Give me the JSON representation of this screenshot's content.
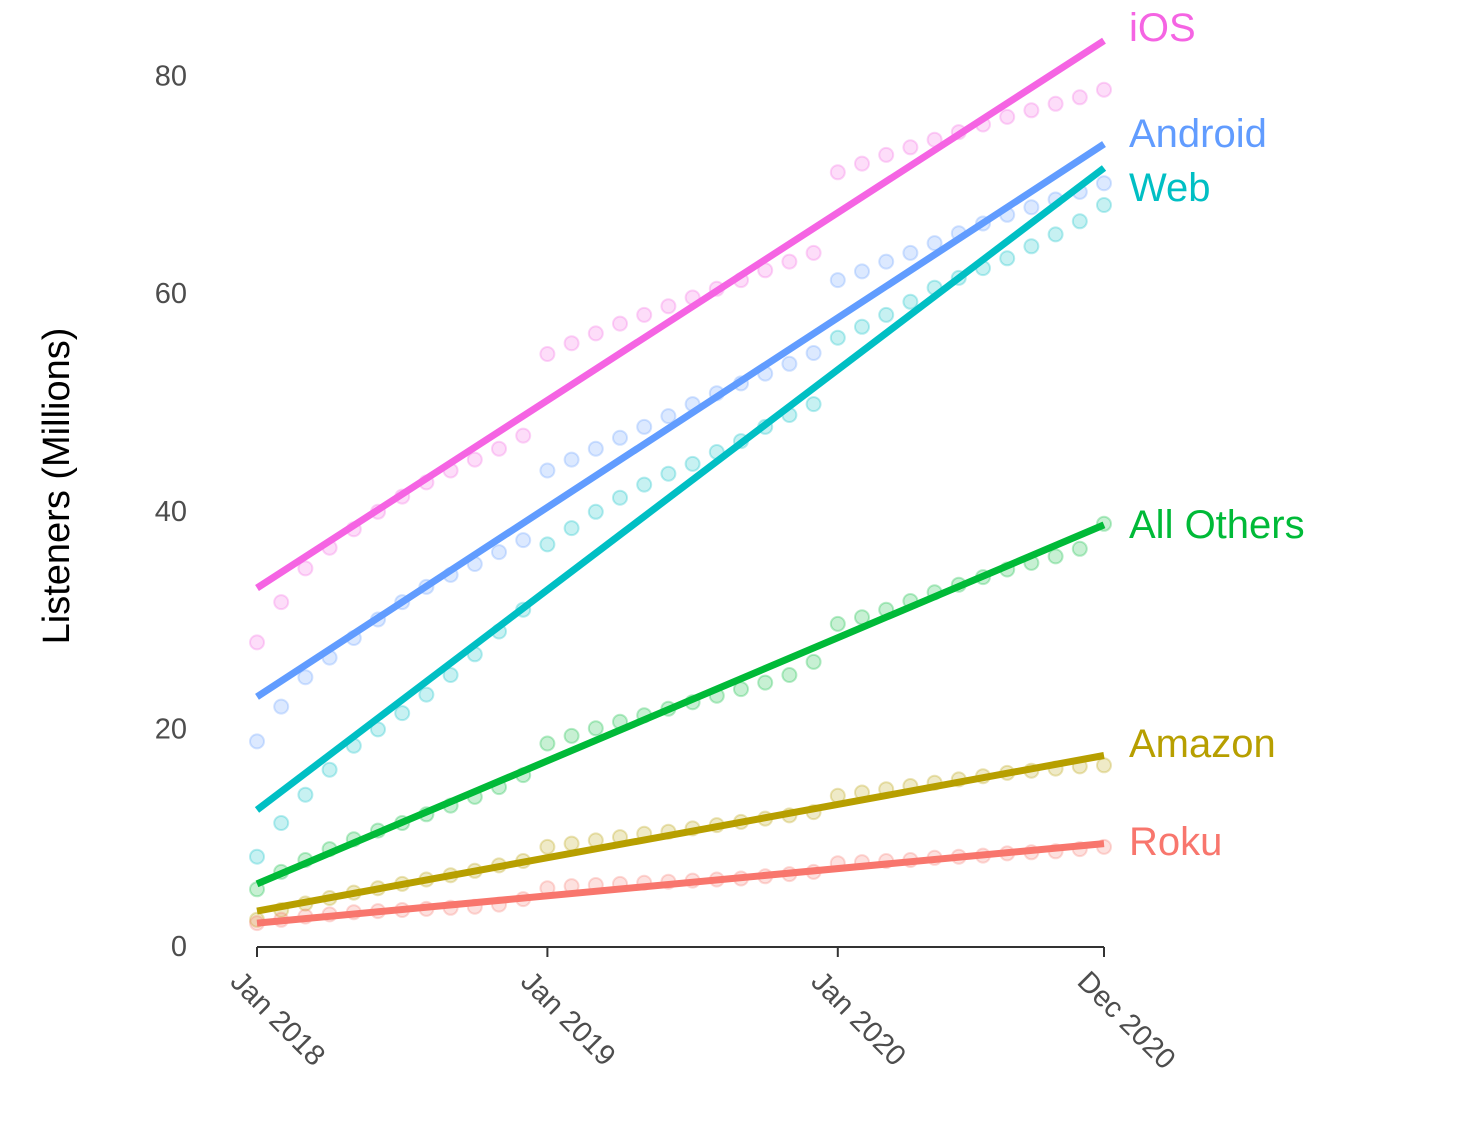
{
  "chart_data": {
    "type": "line",
    "ylabel": "Listeners (Millions)",
    "xlabel": "",
    "ylim": [
      0,
      85
    ],
    "yticks": [
      0,
      20,
      40,
      60,
      80
    ],
    "x_range": [
      "2018-01",
      "2020-12"
    ],
    "xticks": [
      {
        "date": "2018-01",
        "label": "Jan 2018"
      },
      {
        "date": "2019-01",
        "label": "Jan 2019"
      },
      {
        "date": "2020-01",
        "label": "Jan 2020"
      },
      {
        "date": "2020-12",
        "label": "Dec 2020"
      }
    ],
    "grid": false,
    "legend": "direct labels at right end of lines",
    "point_months": [
      "2018-01",
      "2018-02",
      "2018-03",
      "2018-04",
      "2018-05",
      "2018-06",
      "2018-07",
      "2018-08",
      "2018-09",
      "2018-10",
      "2018-11",
      "2018-12",
      "2019-01",
      "2019-02",
      "2019-03",
      "2019-04",
      "2019-05",
      "2019-06",
      "2019-07",
      "2019-08",
      "2019-09",
      "2019-10",
      "2019-11",
      "2019-12",
      "2020-01",
      "2020-02",
      "2020-03",
      "2020-04",
      "2020-05",
      "2020-06",
      "2020-07",
      "2020-08",
      "2020-09",
      "2020-10",
      "2020-11",
      "2020-12"
    ],
    "series": [
      {
        "name": "iOS",
        "color": "#f564e3",
        "trend": [
          33.0,
          83.3
        ],
        "points": [
          28.0,
          31.7,
          34.8,
          36.7,
          38.4,
          40.0,
          41.4,
          42.7,
          43.8,
          44.8,
          45.8,
          47.0,
          54.5,
          55.5,
          56.4,
          57.3,
          58.1,
          58.9,
          59.7,
          60.5,
          61.3,
          62.2,
          63.0,
          63.8,
          71.2,
          72.0,
          72.8,
          73.5,
          74.2,
          74.9,
          75.6,
          76.3,
          76.9,
          77.5,
          78.1,
          78.8
        ]
      },
      {
        "name": "Android",
        "color": "#619cff",
        "trend": [
          23.0,
          73.8
        ],
        "points": [
          18.9,
          22.1,
          24.8,
          26.6,
          28.4,
          30.1,
          31.7,
          33.1,
          34.2,
          35.2,
          36.3,
          37.4,
          43.8,
          44.8,
          45.8,
          46.8,
          47.8,
          48.8,
          49.9,
          50.9,
          51.8,
          52.7,
          53.6,
          54.6,
          61.3,
          62.1,
          63.0,
          63.8,
          64.7,
          65.6,
          66.5,
          67.3,
          68.0,
          68.7,
          69.4,
          70.2
        ]
      },
      {
        "name": "Web",
        "color": "#00bfc4",
        "trend": [
          12.6,
          71.6
        ],
        "points": [
          8.3,
          11.4,
          14.0,
          16.3,
          18.5,
          20.0,
          21.5,
          23.2,
          25.0,
          26.9,
          29.0,
          31.0,
          37.0,
          38.5,
          40.0,
          41.3,
          42.5,
          43.5,
          44.4,
          45.5,
          46.5,
          47.8,
          48.9,
          49.9,
          56.0,
          57.0,
          58.1,
          59.3,
          60.6,
          61.5,
          62.4,
          63.3,
          64.4,
          65.5,
          66.7,
          68.2
        ]
      },
      {
        "name": "All Others",
        "color": "#00ba38",
        "trend": [
          5.8,
          38.8
        ],
        "points": [
          5.3,
          6.9,
          8.0,
          9.0,
          9.9,
          10.7,
          11.4,
          12.2,
          13.0,
          13.8,
          14.7,
          15.8,
          18.7,
          19.4,
          20.1,
          20.7,
          21.3,
          21.9,
          22.5,
          23.1,
          23.7,
          24.3,
          25.0,
          26.2,
          29.7,
          30.3,
          31.0,
          31.8,
          32.6,
          33.3,
          34.0,
          34.7,
          35.3,
          35.9,
          36.6,
          38.9
        ]
      },
      {
        "name": "Amazon",
        "color": "#b79f00",
        "trend": [
          3.3,
          17.6
        ],
        "points": [
          2.5,
          3.4,
          4.0,
          4.5,
          5.0,
          5.4,
          5.8,
          6.2,
          6.6,
          7.0,
          7.5,
          7.9,
          9.2,
          9.5,
          9.8,
          10.1,
          10.4,
          10.6,
          10.9,
          11.2,
          11.5,
          11.8,
          12.1,
          12.4,
          13.9,
          14.2,
          14.5,
          14.8,
          15.1,
          15.4,
          15.7,
          16.0,
          16.2,
          16.4,
          16.6,
          16.7
        ]
      },
      {
        "name": "Roku",
        "color": "#f8766d",
        "trend": [
          2.2,
          9.5
        ],
        "points": [
          2.2,
          2.5,
          2.8,
          3.0,
          3.2,
          3.3,
          3.4,
          3.5,
          3.6,
          3.7,
          3.9,
          4.4,
          5.4,
          5.6,
          5.7,
          5.8,
          5.9,
          6.0,
          6.1,
          6.2,
          6.3,
          6.5,
          6.7,
          6.9,
          7.7,
          7.8,
          7.9,
          8.0,
          8.2,
          8.3,
          8.4,
          8.6,
          8.7,
          8.8,
          9.0,
          9.2
        ]
      }
    ]
  }
}
